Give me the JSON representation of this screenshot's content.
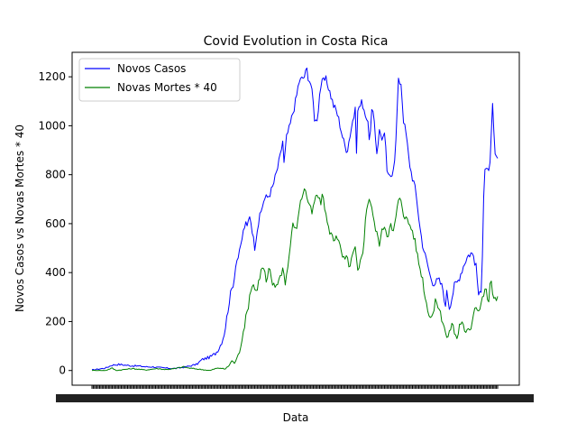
{
  "chart_data": {
    "type": "line",
    "title": "Covid Evolution in Costa Rica",
    "xlabel": "Data",
    "ylabel": "Novos Casos vs Novas Mortes * 40",
    "ylim": [
      -60,
      1300
    ],
    "yticks": [
      0,
      200,
      400,
      600,
      800,
      1000,
      1200
    ],
    "grid": false,
    "legend": "top-left",
    "n_points": 320,
    "series": [
      {
        "name": "Novos Casos",
        "color": "#0000ff",
        "keyframes": [
          [
            0,
            2
          ],
          [
            10,
            10
          ],
          [
            15,
            22
          ],
          [
            20,
            25
          ],
          [
            28,
            20
          ],
          [
            35,
            18
          ],
          [
            40,
            15
          ],
          [
            45,
            15
          ],
          [
            50,
            12
          ],
          [
            55,
            10
          ],
          [
            62,
            8
          ],
          [
            70,
            15
          ],
          [
            78,
            25
          ],
          [
            82,
            45
          ],
          [
            88,
            55
          ],
          [
            92,
            70
          ],
          [
            95,
            95
          ],
          [
            98,
            140
          ],
          [
            100,
            200
          ],
          [
            102,
            280
          ],
          [
            104,
            330
          ],
          [
            106,
            380
          ],
          [
            107,
            440
          ],
          [
            110,
            480
          ],
          [
            112,
            550
          ],
          [
            114,
            600
          ],
          [
            116,
            580
          ],
          [
            117,
            650
          ],
          [
            119,
            590
          ],
          [
            121,
            500
          ],
          [
            123,
            580
          ],
          [
            126,
            650
          ],
          [
            128,
            700
          ],
          [
            131,
            710
          ],
          [
            134,
            740
          ],
          [
            137,
            800
          ],
          [
            140,
            870
          ],
          [
            142,
            940
          ],
          [
            143,
            840
          ],
          [
            145,
            960
          ],
          [
            147,
            990
          ],
          [
            149,
            1040
          ],
          [
            152,
            1110
          ],
          [
            154,
            1180
          ],
          [
            156,
            1190
          ],
          [
            158,
            1200
          ],
          [
            160,
            1230
          ],
          [
            161,
            1200
          ],
          [
            163,
            1170
          ],
          [
            165,
            1080
          ],
          [
            166,
            1010
          ],
          [
            168,
            1040
          ],
          [
            170,
            1160
          ],
          [
            172,
            1180
          ],
          [
            174,
            1190
          ],
          [
            176,
            1160
          ],
          [
            178,
            1120
          ],
          [
            180,
            1080
          ],
          [
            182,
            1060
          ],
          [
            184,
            1020
          ],
          [
            186,
            970
          ],
          [
            188,
            920
          ],
          [
            190,
            900
          ],
          [
            192,
            960
          ],
          [
            194,
            1020
          ],
          [
            196,
            1060
          ],
          [
            197,
            890
          ],
          [
            198,
            1080
          ],
          [
            200,
            1080
          ],
          [
            201,
            1100
          ],
          [
            203,
            1060
          ],
          [
            205,
            1020
          ],
          [
            207,
            930
          ],
          [
            208,
            1060
          ],
          [
            210,
            1030
          ],
          [
            212,
            890
          ],
          [
            214,
            980
          ],
          [
            216,
            950
          ],
          [
            218,
            960
          ],
          [
            220,
            790
          ],
          [
            222,
            790
          ],
          [
            224,
            820
          ],
          [
            226,
            900
          ],
          [
            228,
            1180
          ],
          [
            230,
            1180
          ],
          [
            232,
            1020
          ],
          [
            234,
            960
          ],
          [
            236,
            860
          ],
          [
            238,
            800
          ],
          [
            240,
            760
          ],
          [
            242,
            690
          ],
          [
            244,
            590
          ],
          [
            246,
            520
          ],
          [
            248,
            470
          ],
          [
            250,
            430
          ],
          [
            252,
            380
          ],
          [
            254,
            360
          ],
          [
            256,
            360
          ],
          [
            258,
            370
          ],
          [
            260,
            350
          ],
          [
            262,
            320
          ],
          [
            263,
            230
          ],
          [
            264,
            340
          ],
          [
            266,
            260
          ],
          [
            268,
            300
          ],
          [
            270,
            350
          ],
          [
            272,
            360
          ],
          [
            274,
            390
          ],
          [
            276,
            420
          ],
          [
            278,
            450
          ],
          [
            280,
            470
          ],
          [
            282,
            480
          ],
          [
            284,
            470
          ],
          [
            286,
            420
          ],
          [
            288,
            300
          ],
          [
            290,
            320
          ],
          [
            292,
            830
          ],
          [
            294,
            830
          ],
          [
            296,
            790
          ],
          [
            298,
            1100
          ],
          [
            300,
            870
          ],
          [
            302,
            860
          ]
        ]
      },
      {
        "name": "Novas Mortes * 40",
        "color": "#008000",
        "keyframes": [
          [
            0,
            0
          ],
          [
            10,
            0
          ],
          [
            15,
            10
          ],
          [
            18,
            0
          ],
          [
            30,
            8
          ],
          [
            40,
            2
          ],
          [
            48,
            8
          ],
          [
            55,
            4
          ],
          [
            62,
            8
          ],
          [
            68,
            15
          ],
          [
            72,
            10
          ],
          [
            80,
            5
          ],
          [
            88,
            0
          ],
          [
            92,
            8
          ],
          [
            96,
            10
          ],
          [
            99,
            5
          ],
          [
            102,
            20
          ],
          [
            104,
            40
          ],
          [
            106,
            30
          ],
          [
            108,
            50
          ],
          [
            110,
            80
          ],
          [
            112,
            140
          ],
          [
            114,
            200
          ],
          [
            116,
            250
          ],
          [
            118,
            330
          ],
          [
            120,
            355
          ],
          [
            122,
            320
          ],
          [
            124,
            360
          ],
          [
            126,
            410
          ],
          [
            128,
            420
          ],
          [
            130,
            350
          ],
          [
            132,
            420
          ],
          [
            134,
            360
          ],
          [
            136,
            340
          ],
          [
            138,
            360
          ],
          [
            140,
            380
          ],
          [
            142,
            420
          ],
          [
            144,
            360
          ],
          [
            146,
            430
          ],
          [
            148,
            530
          ],
          [
            150,
            610
          ],
          [
            152,
            560
          ],
          [
            154,
            660
          ],
          [
            156,
            700
          ],
          [
            158,
            750
          ],
          [
            160,
            710
          ],
          [
            162,
            670
          ],
          [
            164,
            640
          ],
          [
            166,
            700
          ],
          [
            168,
            720
          ],
          [
            170,
            680
          ],
          [
            172,
            720
          ],
          [
            174,
            640
          ],
          [
            176,
            580
          ],
          [
            178,
            560
          ],
          [
            180,
            530
          ],
          [
            182,
            560
          ],
          [
            184,
            520
          ],
          [
            186,
            470
          ],
          [
            188,
            450
          ],
          [
            190,
            460
          ],
          [
            192,
            420
          ],
          [
            194,
            470
          ],
          [
            196,
            500
          ],
          [
            198,
            390
          ],
          [
            200,
            450
          ],
          [
            202,
            500
          ],
          [
            204,
            640
          ],
          [
            206,
            710
          ],
          [
            208,
            680
          ],
          [
            210,
            600
          ],
          [
            212,
            560
          ],
          [
            214,
            520
          ],
          [
            216,
            570
          ],
          [
            218,
            600
          ],
          [
            220,
            540
          ],
          [
            222,
            610
          ],
          [
            224,
            550
          ],
          [
            226,
            620
          ],
          [
            228,
            690
          ],
          [
            230,
            700
          ],
          [
            232,
            640
          ],
          [
            234,
            620
          ],
          [
            236,
            600
          ],
          [
            238,
            580
          ],
          [
            240,
            540
          ],
          [
            242,
            480
          ],
          [
            244,
            420
          ],
          [
            246,
            380
          ],
          [
            248,
            300
          ],
          [
            250,
            250
          ],
          [
            252,
            220
          ],
          [
            254,
            230
          ],
          [
            256,
            290
          ],
          [
            258,
            260
          ],
          [
            260,
            220
          ],
          [
            262,
            190
          ],
          [
            264,
            130
          ],
          [
            266,
            150
          ],
          [
            268,
            200
          ],
          [
            270,
            150
          ],
          [
            272,
            130
          ],
          [
            274,
            200
          ],
          [
            276,
            190
          ],
          [
            278,
            140
          ],
          [
            280,
            180
          ],
          [
            282,
            170
          ],
          [
            284,
            240
          ],
          [
            286,
            270
          ],
          [
            288,
            240
          ],
          [
            290,
            280
          ],
          [
            292,
            320
          ],
          [
            294,
            330
          ],
          [
            295,
            250
          ],
          [
            296,
            340
          ],
          [
            297,
            370
          ],
          [
            298,
            310
          ],
          [
            300,
            300
          ],
          [
            302,
            300
          ]
        ]
      }
    ]
  }
}
